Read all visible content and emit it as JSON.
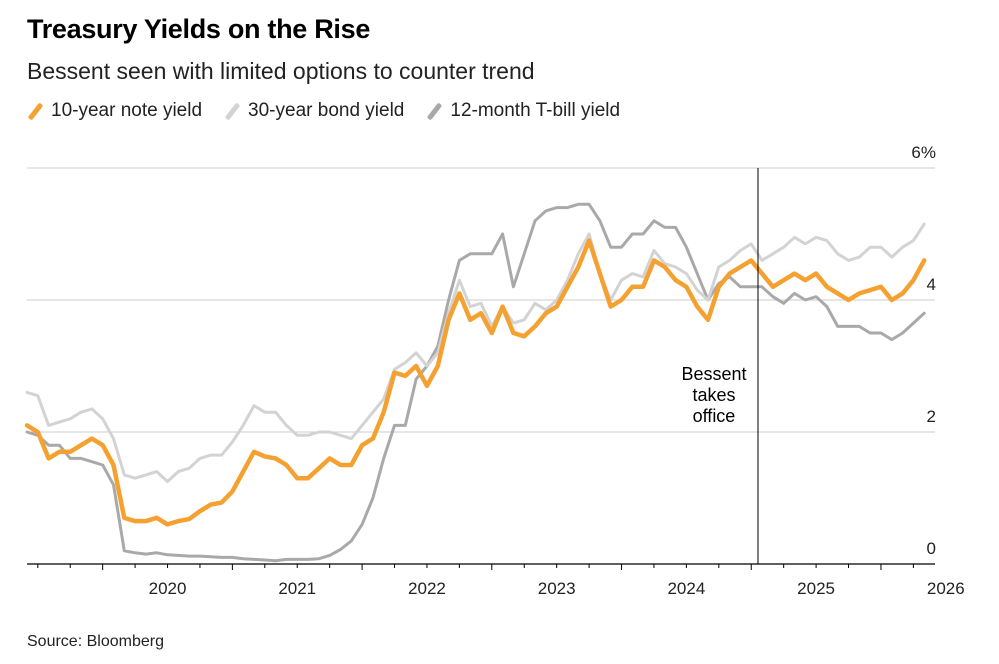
{
  "header": {
    "title": "Treasury Yields on the Rise",
    "subtitle": "Bessent seen with limited options to counter trend"
  },
  "footer": {
    "source": "Source: Bloomberg"
  },
  "colors": {
    "ten_year": "#F5A131",
    "thirty_year": "#D3D3D3",
    "twelve_month": "#A9A9A9",
    "gridline": "#CCCCCC",
    "axis": "#000000",
    "annotation_line": "#000000"
  },
  "chart_data": {
    "type": "line",
    "x_axis": {
      "type": "date",
      "ticks": [
        "2020",
        "2021",
        "2022",
        "2023",
        "2024",
        "2025",
        "2026"
      ],
      "xlim": [
        "2019-06-01",
        "2026-06-01"
      ]
    },
    "y_axis": {
      "ticks": [
        "0",
        "2",
        "4",
        "6%"
      ],
      "ylim": [
        0,
        6
      ],
      "position": "right",
      "grid": true
    },
    "legend": {
      "position": "top-left"
    },
    "annotation": {
      "text_lines": [
        "Bessent",
        "takes",
        "office"
      ],
      "date": "2025-01-20"
    },
    "series": [
      {
        "name": "10-year note yield",
        "color": "#F5A131",
        "points": [
          [
            "2019-06",
            2.1
          ],
          [
            "2019-07",
            2.0
          ],
          [
            "2019-08",
            1.6
          ],
          [
            "2019-09",
            1.7
          ],
          [
            "2019-10",
            1.7
          ],
          [
            "2019-11",
            1.8
          ],
          [
            "2019-12",
            1.9
          ],
          [
            "2020-01",
            1.8
          ],
          [
            "2020-02",
            1.5
          ],
          [
            "2020-03",
            0.7
          ],
          [
            "2020-04",
            0.65
          ],
          [
            "2020-05",
            0.65
          ],
          [
            "2020-06",
            0.7
          ],
          [
            "2020-07",
            0.6
          ],
          [
            "2020-08",
            0.65
          ],
          [
            "2020-09",
            0.68
          ],
          [
            "2020-10",
            0.8
          ],
          [
            "2020-11",
            0.9
          ],
          [
            "2020-12",
            0.93
          ],
          [
            "2021-01",
            1.1
          ],
          [
            "2021-02",
            1.4
          ],
          [
            "2021-03",
            1.7
          ],
          [
            "2021-04",
            1.63
          ],
          [
            "2021-05",
            1.6
          ],
          [
            "2021-06",
            1.5
          ],
          [
            "2021-07",
            1.3
          ],
          [
            "2021-08",
            1.3
          ],
          [
            "2021-09",
            1.45
          ],
          [
            "2021-10",
            1.6
          ],
          [
            "2021-11",
            1.5
          ],
          [
            "2021-12",
            1.5
          ],
          [
            "2022-01",
            1.8
          ],
          [
            "2022-02",
            1.9
          ],
          [
            "2022-03",
            2.3
          ],
          [
            "2022-04",
            2.9
          ],
          [
            "2022-05",
            2.85
          ],
          [
            "2022-06",
            3.0
          ],
          [
            "2022-07",
            2.7
          ],
          [
            "2022-08",
            3.0
          ],
          [
            "2022-09",
            3.7
          ],
          [
            "2022-10",
            4.1
          ],
          [
            "2022-11",
            3.7
          ],
          [
            "2022-12",
            3.8
          ],
          [
            "2023-01",
            3.5
          ],
          [
            "2023-02",
            3.9
          ],
          [
            "2023-03",
            3.5
          ],
          [
            "2023-04",
            3.45
          ],
          [
            "2023-05",
            3.6
          ],
          [
            "2023-06",
            3.8
          ],
          [
            "2023-07",
            3.9
          ],
          [
            "2023-08",
            4.2
          ],
          [
            "2023-09",
            4.5
          ],
          [
            "2023-10",
            4.9
          ],
          [
            "2023-11",
            4.4
          ],
          [
            "2023-12",
            3.9
          ],
          [
            "2024-01",
            4.0
          ],
          [
            "2024-02",
            4.2
          ],
          [
            "2024-03",
            4.2
          ],
          [
            "2024-04",
            4.6
          ],
          [
            "2024-05",
            4.5
          ],
          [
            "2024-06",
            4.3
          ],
          [
            "2024-07",
            4.2
          ],
          [
            "2024-08",
            3.9
          ],
          [
            "2024-09",
            3.7
          ],
          [
            "2024-10",
            4.2
          ],
          [
            "2024-11",
            4.4
          ],
          [
            "2024-12",
            4.5
          ],
          [
            "2025-01",
            4.6
          ],
          [
            "2025-02",
            4.4
          ],
          [
            "2025-03",
            4.2
          ],
          [
            "2025-04",
            4.3
          ],
          [
            "2025-05",
            4.4
          ],
          [
            "2025-06",
            4.3
          ],
          [
            "2025-07",
            4.4
          ],
          [
            "2025-08",
            4.2
          ],
          [
            "2025-09",
            4.1
          ],
          [
            "2025-10",
            4.0
          ],
          [
            "2025-11",
            4.1
          ],
          [
            "2025-12",
            4.15
          ],
          [
            "2026-01",
            4.2
          ],
          [
            "2026-02",
            4.0
          ],
          [
            "2026-03",
            4.1
          ],
          [
            "2026-04",
            4.3
          ],
          [
            "2026-05",
            4.6
          ]
        ]
      },
      {
        "name": "30-year bond yield",
        "color": "#D3D3D3",
        "points": [
          [
            "2019-06",
            2.6
          ],
          [
            "2019-07",
            2.55
          ],
          [
            "2019-08",
            2.1
          ],
          [
            "2019-09",
            2.15
          ],
          [
            "2019-10",
            2.2
          ],
          [
            "2019-11",
            2.3
          ],
          [
            "2019-12",
            2.35
          ],
          [
            "2020-01",
            2.2
          ],
          [
            "2020-02",
            1.9
          ],
          [
            "2020-03",
            1.35
          ],
          [
            "2020-04",
            1.3
          ],
          [
            "2020-05",
            1.35
          ],
          [
            "2020-06",
            1.4
          ],
          [
            "2020-07",
            1.25
          ],
          [
            "2020-08",
            1.4
          ],
          [
            "2020-09",
            1.45
          ],
          [
            "2020-10",
            1.6
          ],
          [
            "2020-11",
            1.65
          ],
          [
            "2020-12",
            1.65
          ],
          [
            "2021-01",
            1.85
          ],
          [
            "2021-02",
            2.1
          ],
          [
            "2021-03",
            2.4
          ],
          [
            "2021-04",
            2.3
          ],
          [
            "2021-05",
            2.3
          ],
          [
            "2021-06",
            2.1
          ],
          [
            "2021-07",
            1.95
          ],
          [
            "2021-08",
            1.95
          ],
          [
            "2021-09",
            2.0
          ],
          [
            "2021-10",
            2.0
          ],
          [
            "2021-11",
            1.95
          ],
          [
            "2021-12",
            1.9
          ],
          [
            "2022-01",
            2.1
          ],
          [
            "2022-02",
            2.3
          ],
          [
            "2022-03",
            2.5
          ],
          [
            "2022-04",
            2.95
          ],
          [
            "2022-05",
            3.05
          ],
          [
            "2022-06",
            3.2
          ],
          [
            "2022-07",
            3.0
          ],
          [
            "2022-08",
            3.2
          ],
          [
            "2022-09",
            3.8
          ],
          [
            "2022-10",
            4.3
          ],
          [
            "2022-11",
            3.9
          ],
          [
            "2022-12",
            3.95
          ],
          [
            "2023-01",
            3.6
          ],
          [
            "2023-02",
            3.9
          ],
          [
            "2023-03",
            3.65
          ],
          [
            "2023-04",
            3.7
          ],
          [
            "2023-05",
            3.95
          ],
          [
            "2023-06",
            3.85
          ],
          [
            "2023-07",
            4.0
          ],
          [
            "2023-08",
            4.3
          ],
          [
            "2023-09",
            4.7
          ],
          [
            "2023-10",
            5.0
          ],
          [
            "2023-11",
            4.4
          ],
          [
            "2023-12",
            4.0
          ],
          [
            "2024-01",
            4.3
          ],
          [
            "2024-02",
            4.4
          ],
          [
            "2024-03",
            4.35
          ],
          [
            "2024-04",
            4.75
          ],
          [
            "2024-05",
            4.55
          ],
          [
            "2024-06",
            4.5
          ],
          [
            "2024-07",
            4.4
          ],
          [
            "2024-08",
            4.15
          ],
          [
            "2024-09",
            4.0
          ],
          [
            "2024-10",
            4.5
          ],
          [
            "2024-11",
            4.6
          ],
          [
            "2024-12",
            4.75
          ],
          [
            "2025-01",
            4.85
          ],
          [
            "2025-02",
            4.6
          ],
          [
            "2025-03",
            4.7
          ],
          [
            "2025-04",
            4.8
          ],
          [
            "2025-05",
            4.95
          ],
          [
            "2025-06",
            4.85
          ],
          [
            "2025-07",
            4.95
          ],
          [
            "2025-08",
            4.9
          ],
          [
            "2025-09",
            4.7
          ],
          [
            "2025-10",
            4.6
          ],
          [
            "2025-11",
            4.65
          ],
          [
            "2025-12",
            4.8
          ],
          [
            "2026-01",
            4.8
          ],
          [
            "2026-02",
            4.65
          ],
          [
            "2026-03",
            4.8
          ],
          [
            "2026-04",
            4.9
          ],
          [
            "2026-05",
            5.15
          ]
        ]
      },
      {
        "name": "12-month T-bill yield",
        "color": "#A9A9A9",
        "points": [
          [
            "2019-06",
            2.0
          ],
          [
            "2019-07",
            1.95
          ],
          [
            "2019-08",
            1.8
          ],
          [
            "2019-09",
            1.8
          ],
          [
            "2019-10",
            1.6
          ],
          [
            "2019-11",
            1.6
          ],
          [
            "2019-12",
            1.55
          ],
          [
            "2020-01",
            1.5
          ],
          [
            "2020-02",
            1.2
          ],
          [
            "2020-03",
            0.2
          ],
          [
            "2020-04",
            0.17
          ],
          [
            "2020-05",
            0.15
          ],
          [
            "2020-06",
            0.17
          ],
          [
            "2020-07",
            0.14
          ],
          [
            "2020-08",
            0.13
          ],
          [
            "2020-09",
            0.12
          ],
          [
            "2020-10",
            0.12
          ],
          [
            "2020-11",
            0.11
          ],
          [
            "2020-12",
            0.1
          ],
          [
            "2021-01",
            0.1
          ],
          [
            "2021-02",
            0.08
          ],
          [
            "2021-03",
            0.07
          ],
          [
            "2021-04",
            0.06
          ],
          [
            "2021-05",
            0.05
          ],
          [
            "2021-06",
            0.07
          ],
          [
            "2021-07",
            0.07
          ],
          [
            "2021-08",
            0.07
          ],
          [
            "2021-09",
            0.08
          ],
          [
            "2021-10",
            0.13
          ],
          [
            "2021-11",
            0.22
          ],
          [
            "2021-12",
            0.35
          ],
          [
            "2022-01",
            0.6
          ],
          [
            "2022-02",
            1.0
          ],
          [
            "2022-03",
            1.6
          ],
          [
            "2022-04",
            2.1
          ],
          [
            "2022-05",
            2.1
          ],
          [
            "2022-06",
            2.8
          ],
          [
            "2022-07",
            3.0
          ],
          [
            "2022-08",
            3.3
          ],
          [
            "2022-09",
            4.0
          ],
          [
            "2022-10",
            4.6
          ],
          [
            "2022-11",
            4.7
          ],
          [
            "2022-12",
            4.7
          ],
          [
            "2023-01",
            4.7
          ],
          [
            "2023-02",
            5.0
          ],
          [
            "2023-03",
            4.2
          ],
          [
            "2023-04",
            4.7
          ],
          [
            "2023-05",
            5.2
          ],
          [
            "2023-06",
            5.35
          ],
          [
            "2023-07",
            5.4
          ],
          [
            "2023-08",
            5.4
          ],
          [
            "2023-09",
            5.45
          ],
          [
            "2023-10",
            5.45
          ],
          [
            "2023-11",
            5.2
          ],
          [
            "2023-12",
            4.8
          ],
          [
            "2024-01",
            4.8
          ],
          [
            "2024-02",
            5.0
          ],
          [
            "2024-03",
            5.0
          ],
          [
            "2024-04",
            5.2
          ],
          [
            "2024-05",
            5.1
          ],
          [
            "2024-06",
            5.1
          ],
          [
            "2024-07",
            4.8
          ],
          [
            "2024-08",
            4.4
          ],
          [
            "2024-09",
            4.0
          ],
          [
            "2024-10",
            4.25
          ],
          [
            "2024-11",
            4.35
          ],
          [
            "2024-12",
            4.2
          ],
          [
            "2025-01",
            4.2
          ],
          [
            "2025-02",
            4.2
          ],
          [
            "2025-03",
            4.05
          ],
          [
            "2025-04",
            3.95
          ],
          [
            "2025-05",
            4.1
          ],
          [
            "2025-06",
            4.0
          ],
          [
            "2025-07",
            4.05
          ],
          [
            "2025-08",
            3.9
          ],
          [
            "2025-09",
            3.6
          ],
          [
            "2025-10",
            3.6
          ],
          [
            "2025-11",
            3.6
          ],
          [
            "2025-12",
            3.5
          ],
          [
            "2026-01",
            3.5
          ],
          [
            "2026-02",
            3.4
          ],
          [
            "2026-03",
            3.5
          ],
          [
            "2026-04",
            3.65
          ],
          [
            "2026-05",
            3.8
          ]
        ]
      }
    ]
  }
}
